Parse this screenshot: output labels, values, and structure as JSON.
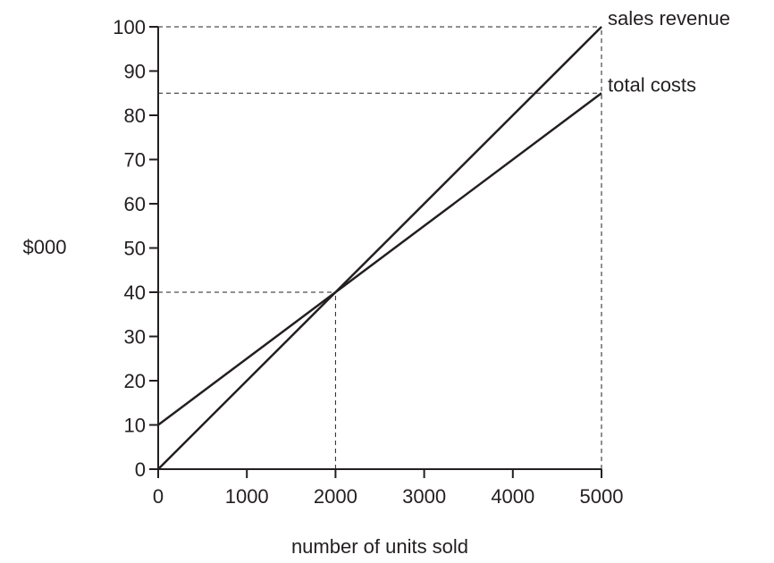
{
  "chart_data": {
    "type": "line",
    "xlabel": "number of units sold",
    "ylabel": "$000",
    "xlim": [
      0,
      5000
    ],
    "ylim": [
      0,
      100
    ],
    "x_ticks": [
      "0",
      "1000",
      "2000",
      "3000",
      "4000",
      "5000"
    ],
    "y_ticks": [
      "0",
      "10",
      "20",
      "30",
      "40",
      "50",
      "60",
      "70",
      "80",
      "90",
      "100"
    ],
    "grid": false,
    "series": [
      {
        "name": "sales revenue",
        "x": [
          0,
          5000
        ],
        "y": [
          0,
          100
        ],
        "color": "#231f20"
      },
      {
        "name": "total costs",
        "x": [
          0,
          5000
        ],
        "y": [
          10,
          85
        ],
        "color": "#231f20"
      }
    ],
    "reference_lines": [
      {
        "points": [
          [
            0,
            100
          ],
          [
            5000,
            100
          ]
        ]
      },
      {
        "points": [
          [
            0,
            85
          ],
          [
            5000,
            85
          ]
        ]
      },
      {
        "points": [
          [
            0,
            40
          ],
          [
            2000,
            40
          ]
        ]
      },
      {
        "points": [
          [
            2000,
            0
          ],
          [
            2000,
            40
          ]
        ]
      },
      {
        "points": [
          [
            5000,
            0
          ],
          [
            5000,
            100
          ]
        ]
      }
    ]
  }
}
